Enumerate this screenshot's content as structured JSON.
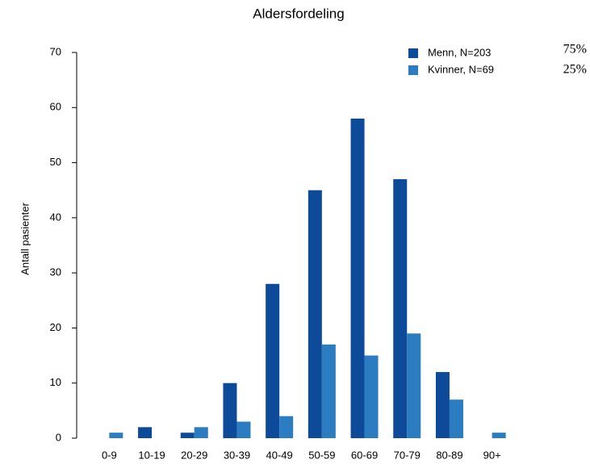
{
  "chart_data": {
    "type": "bar",
    "title": "Aldersfordeling",
    "y_label": "Antall pasienter",
    "categories": [
      "0-9",
      "10-19",
      "20-29",
      "30-39",
      "40-49",
      "50-59",
      "60-69",
      "70-79",
      "80-89",
      "90+"
    ],
    "series": [
      {
        "name": "Menn, N=203",
        "color": "#0d4a9a",
        "values": [
          0,
          2,
          1,
          10,
          28,
          45,
          58,
          47,
          12,
          0
        ]
      },
      {
        "name": "Kvinner, N=69",
        "color": "#2b7cc1",
        "values": [
          1,
          0,
          2,
          3,
          4,
          17,
          15,
          19,
          7,
          1
        ]
      }
    ],
    "legend_annotations": [
      "75%",
      "25%"
    ],
    "ylim": [
      0,
      70
    ],
    "yticks": [
      0,
      10,
      20,
      30,
      40,
      50,
      60,
      70
    ],
    "legend": "top-right",
    "grid": false
  }
}
